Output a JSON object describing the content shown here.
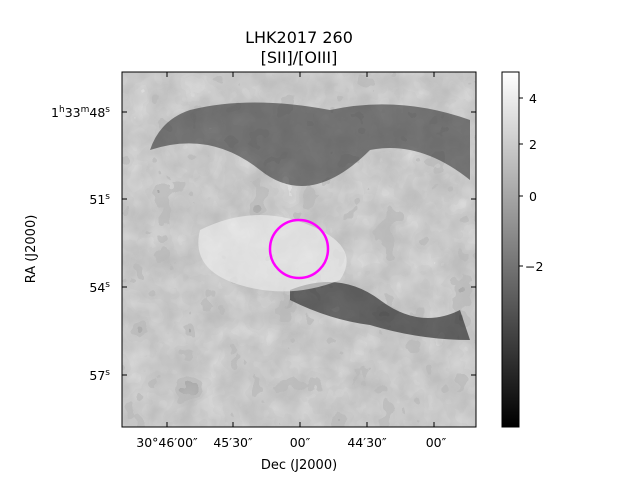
{
  "figure": {
    "title_line1": "LHK2017 260",
    "title_line2": "[SII]/[OIII]",
    "xlabel": "Dec (J2000)",
    "ylabel": "RA (J2000)",
    "x_ticks": [
      "30°46′00″",
      "45′30″",
      "00″",
      "44′30″",
      "00″"
    ],
    "y_ticks": [
      {
        "main": "1",
        "sup1": "h",
        "mid": "33",
        "sup2": "m",
        "end": "48",
        "sup3": "s"
      },
      {
        "main": "51",
        "sup": "s"
      },
      {
        "main": "54",
        "sup": "s"
      },
      {
        "main": "57",
        "sup": "s"
      }
    ],
    "colorbar": {
      "ticks": [
        "4",
        "2",
        "0",
        "−2"
      ],
      "colormap": "gray"
    },
    "aperture_color": "#ff00ff"
  }
}
